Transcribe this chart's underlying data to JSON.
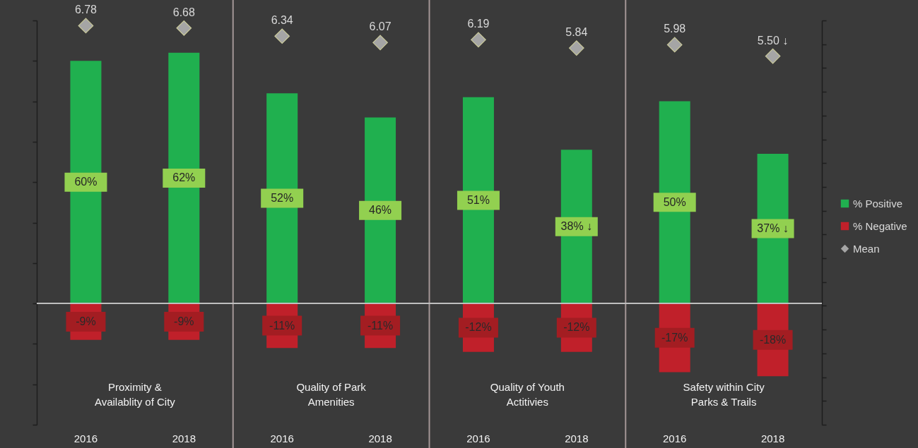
{
  "chart_data": {
    "type": "bar",
    "categories": [
      "2016",
      "2018",
      "2016",
      "2018",
      "2016",
      "2018",
      "2016",
      "2018"
    ],
    "series": [
      {
        "name": "% Positive",
        "color": "#20b04f",
        "values": [
          60,
          62,
          52,
          46,
          51,
          38,
          50,
          37
        ],
        "value_labels": [
          "60%",
          "62%",
          "52%",
          "46%",
          "51%",
          "38% ↓",
          "50%",
          "37% ↓"
        ]
      },
      {
        "name": "% Negative",
        "color": "#c0202a",
        "values": [
          -9,
          -9,
          -11,
          -11,
          -12,
          -12,
          -17,
          -18
        ],
        "value_labels": [
          "-9%",
          "-9%",
          "-11%",
          "-11%",
          "-12%",
          "-12%",
          "-17%",
          "-18%"
        ]
      },
      {
        "name": "Mean",
        "type": "scatter",
        "axis": "y2",
        "color": "#a5a5a5",
        "values": [
          6.78,
          6.68,
          6.34,
          6.07,
          6.19,
          5.84,
          5.98,
          5.5
        ],
        "value_labels": [
          "6.78",
          "6.68",
          "6.34",
          "6.07",
          "6.19",
          "5.84",
          "5.98",
          "5.50 ↓"
        ]
      }
    ],
    "stacked": true,
    "ylim": [
      -30,
      70
    ],
    "yticks": [
      {
        "value": -30,
        "label": null
      },
      {
        "value": -20,
        "label": null
      },
      {
        "value": -10,
        "label": null
      },
      {
        "value": 0,
        "label": null
      },
      {
        "value": 10,
        "label": null
      },
      {
        "value": 20,
        "label": null
      },
      {
        "value": 30,
        "label": null
      },
      {
        "value": 40,
        "label": null
      },
      {
        "value": 50,
        "label": null
      },
      {
        "value": 60,
        "label": null
      },
      {
        "value": 70,
        "label": null
      }
    ],
    "y2lim": [
      -10,
      7
    ],
    "y2ticks": [
      {
        "value": -10,
        "label": null
      },
      {
        "value": -9,
        "label": null
      },
      {
        "value": -8,
        "label": null
      },
      {
        "value": -7,
        "label": null
      },
      {
        "value": -6,
        "label": null
      },
      {
        "value": -5,
        "label": null
      },
      {
        "value": -4,
        "label": null
      },
      {
        "value": -3,
        "label": null
      },
      {
        "value": -2,
        "label": null
      },
      {
        "value": -1,
        "label": null
      },
      {
        "value": 0,
        "label": null
      },
      {
        "value": 1,
        "label": null
      },
      {
        "value": 2,
        "label": null
      },
      {
        "value": 3,
        "label": null
      },
      {
        "value": 4,
        "label": null
      },
      {
        "value": 5,
        "label": null
      },
      {
        "value": 6,
        "label": null
      },
      {
        "value": 7,
        "label": null
      }
    ],
    "tick_labels": "x",
    "marker": "diamond",
    "legend": "right",
    "grid": "x",
    "ref_lines": [
      {
        "axis": "y",
        "value": 0,
        "color": "#bfbfbf"
      }
    ],
    "annotations": [
      "Proximity &\nAvailablity of City",
      "Quality of Park\nAmenities",
      "Quality of Youth\nActitivies",
      "Safety within City\nParks & Trails"
    ]
  }
}
